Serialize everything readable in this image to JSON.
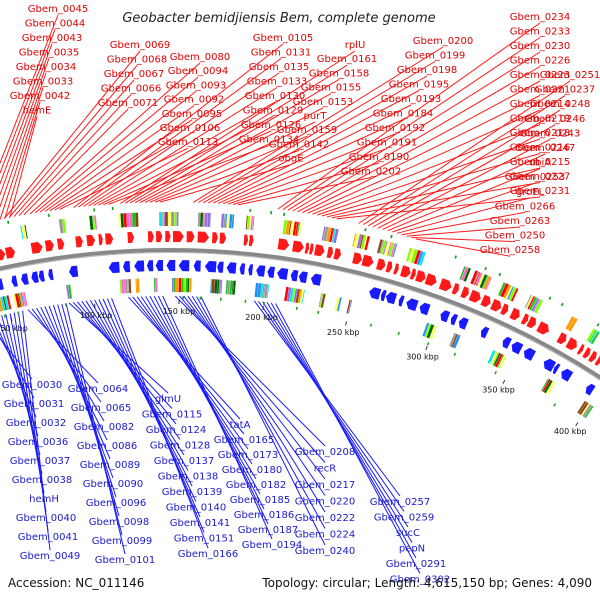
{
  "header": {
    "title": "Geobacter bemidjiensis Bem, complete genome"
  },
  "footer": {
    "accession": "Accession: NC_011146",
    "topology": "Topology: circular; Length: 4,615,150 bp; Genes: 4,090"
  },
  "colors": {
    "forward": "#ff1a1a",
    "reverse": "#1a1aff",
    "backbone": "#888888",
    "palette": [
      "#00e5ee",
      "#20c020",
      "#9a9a9a",
      "#ff66cc",
      "#1e90ff",
      "#7fff00",
      "#9370db",
      "#8b4513",
      "#ff9900",
      "#006400",
      "#ffff66",
      "#ff0000"
    ]
  },
  "scale_ticks": [
    "50 kbp",
    "100 kbp",
    "150 kbp",
    "200 kbp",
    "250 kbp",
    "300 kbp",
    "350 kbp",
    "400 kbp"
  ],
  "forward_labels": [
    "Gbem_0045",
    "Gbem_0044",
    "Gbem_0043",
    "Gbem_0035",
    "Gbem_0034",
    "Gbem_0033",
    "Gbem_0042",
    "hemE",
    "Gbem_0069",
    "Gbem_0068",
    "Gbem_0067",
    "Gbem_0066",
    "Gbem_0071",
    "Gbem_0080",
    "Gbem_0094",
    "Gbem_0093",
    "Gbem_0092",
    "Gbem_0095",
    "Gbem_0106",
    "Gbem_0113",
    "Gbem_0105",
    "Gbem_0131",
    "Gbem_0135",
    "Gbem_0133",
    "Gbem_0130",
    "Gbem_0129",
    "Gbem_0126",
    "Gbem_0134",
    "rplU",
    "Gbem_0161",
    "Gbem_0158",
    "Gbem_0155",
    "Gbem_0153",
    "purT",
    "Gbem_0159",
    "Gbem_0142",
    "obgE",
    "Gbem_0200",
    "Gbem_0199",
    "Gbem_0198",
    "Gbem_0195",
    "Gbem_0193",
    "Gbem_0184",
    "Gbem_0192",
    "Gbem_0191",
    "Gbem_0190",
    "Gbem_0202",
    "Gbem_0234",
    "Gbem_0233",
    "Gbem_0230",
    "Gbem_0226",
    "Gbem_0223",
    "Gbem_0221",
    "Gbem_0214",
    "Gbem_0219",
    "Gbem_0218",
    "Gbem_0216",
    "Gbem_0215",
    "Gbem_0227",
    "Gbem_0231",
    "Gbem_0251",
    "Gbem_0237",
    "Gbem_0248",
    "Gbem_0246",
    "Gbem_0243",
    "Gbem_0247",
    "ubiA",
    "Gbem_0253",
    "groEL",
    "Gbem_0266",
    "Gbem_0263",
    "Gbem_0250",
    "Gbem_0258"
  ],
  "reverse_labels": [
    "Gbem_0030",
    "Gbem_0031",
    "Gbem_0032",
    "Gbem_0036",
    "Gbem_0037",
    "Gbem_0038",
    "hemH",
    "Gbem_0040",
    "Gbem_0041",
    "Gbem_0049",
    "Gbem_0064",
    "Gbem_0065",
    "Gbem_0082",
    "Gbem_0086",
    "Gbem_0089",
    "Gbem_0090",
    "Gbem_0096",
    "Gbem_0098",
    "Gbem_0099",
    "Gbem_0101",
    "glmU",
    "Gbem_0115",
    "Gbem_0124",
    "Gbem_0128",
    "Gbem_0137",
    "Gbem_0138",
    "Gbem_0139",
    "Gbem_0140",
    "Gbem_0141",
    "Gbem_0151",
    "Gbem_0166",
    "tatA",
    "Gbem_0165",
    "Gbem_0173",
    "Gbem_0180",
    "Gbem_0182",
    "Gbem_0185",
    "Gbem_0186",
    "Gbem_0187",
    "Gbem_0194",
    "Gbem_0208",
    "recR",
    "Gbem_0217",
    "Gbem_0220",
    "Gbem_0222",
    "Gbem_0224",
    "Gbem_0240",
    "Gbem_0257",
    "Gbem_0259",
    "sucC",
    "pepN",
    "Gbem_0291",
    "Gbem_0302"
  ]
}
